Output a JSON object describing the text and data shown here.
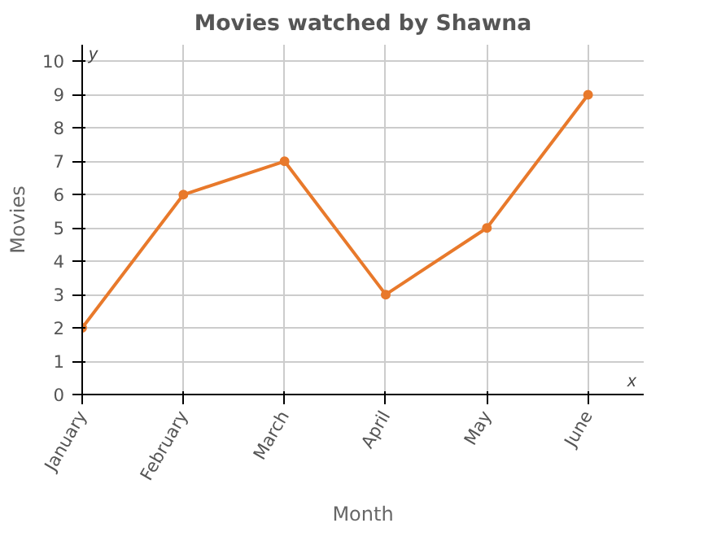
{
  "chart_data": {
    "type": "line",
    "title": "Movies watched by Shawna",
    "xlabel": "Month",
    "ylabel": "Movies",
    "categories": [
      "January",
      "February",
      "March",
      "April",
      "May",
      "June"
    ],
    "series": [
      {
        "color": "#e8792b",
        "values": [
          2,
          6,
          7,
          3,
          5,
          9
        ]
      }
    ],
    "ylim": [
      0,
      10.5
    ],
    "yticks": [
      0,
      1,
      2,
      3,
      4,
      5,
      6,
      7,
      8,
      9,
      10
    ],
    "annotations": [
      "y",
      "x"
    ],
    "grid": true,
    "marker": "circle",
    "line_style": "solid"
  }
}
